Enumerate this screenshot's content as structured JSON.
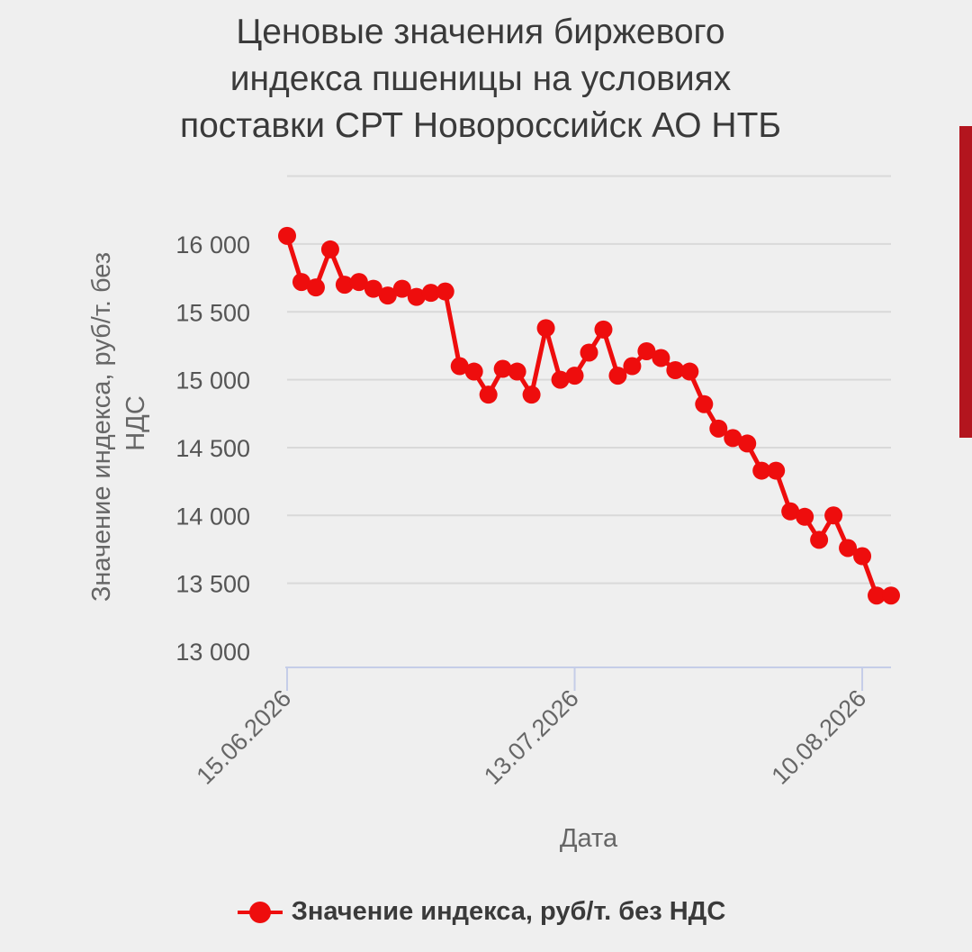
{
  "chart_data": {
    "type": "line",
    "title_lines": [
      "Ценовые значения биржевого",
      "индекса пшеницы на условиях",
      "поставки СРТ Новороссийск АО НТБ"
    ],
    "xlabel": "Дата",
    "ylabel": "Значение индекса, руб/т. без НДС",
    "ylim": [
      13000,
      16500
    ],
    "yticks": [
      13000,
      13500,
      14000,
      14500,
      15000,
      15500,
      16000
    ],
    "ytick_labels": [
      "13 000",
      "13 500",
      "14 000",
      "14 500",
      "15 000",
      "15 500",
      "16 000"
    ],
    "xticks": [
      {
        "label": "15.06.2026",
        "index": 0
      },
      {
        "label": "13.07.2026",
        "index": 20
      },
      {
        "label": "10.08.2026",
        "index": 40
      }
    ],
    "grid": true,
    "legend_position": "bottom",
    "series": [
      {
        "name": "Значение индекса, руб/т. без НДС",
        "color": "#ee0d0d",
        "values": [
          16060,
          15720,
          15680,
          15960,
          15700,
          15720,
          15670,
          15620,
          15670,
          15610,
          15640,
          15650,
          15100,
          15060,
          14890,
          15080,
          15060,
          14890,
          15380,
          15000,
          15030,
          15200,
          15370,
          15030,
          15100,
          15210,
          15160,
          15070,
          15060,
          14820,
          14640,
          14570,
          14530,
          14330,
          14330,
          14030,
          13990,
          13820,
          14000,
          13760,
          13700,
          13410,
          13410
        ]
      }
    ]
  }
}
